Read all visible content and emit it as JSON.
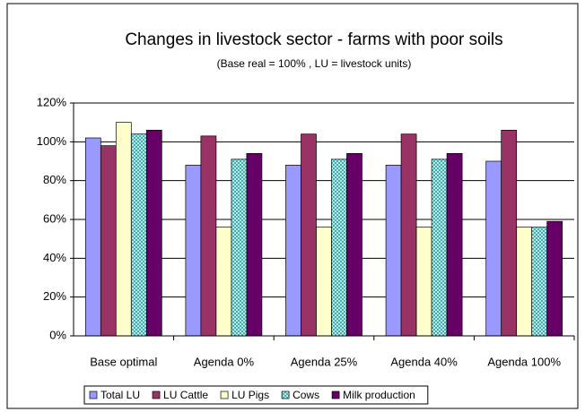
{
  "chart_data": {
    "type": "bar",
    "title": "Changes in livestock sector - farms with poor soils",
    "subtitle": "(Base real = 100% , LU = livestock units)",
    "categories": [
      "Base optimal",
      "Agenda 0%",
      "Agenda 25%",
      "Agenda 40%",
      "Agenda 100%"
    ],
    "series": [
      {
        "name": "Total LU",
        "color": "#9999ff",
        "values": [
          102,
          88,
          88,
          88,
          90
        ]
      },
      {
        "name": "LU Cattle",
        "color": "#993366",
        "values": [
          98,
          103,
          104,
          104,
          106
        ]
      },
      {
        "name": "LU Pigs",
        "color": "#ffffcc",
        "values": [
          110,
          56,
          56,
          56,
          56
        ]
      },
      {
        "name": "Cows",
        "color": "#ccffff",
        "pattern": "crosshatch",
        "values": [
          104,
          91,
          91,
          91,
          56
        ]
      },
      {
        "name": "Milk production",
        "color": "#660066",
        "values": [
          106,
          94,
          94,
          94,
          59
        ]
      }
    ],
    "ylim": [
      0,
      120
    ],
    "yticks": [
      {
        "value": 0,
        "label": "0%"
      },
      {
        "value": 20,
        "label": "20%"
      },
      {
        "value": 40,
        "label": "40%"
      },
      {
        "value": 60,
        "label": "60%"
      },
      {
        "value": 80,
        "label": "80%"
      },
      {
        "value": 100,
        "label": "100%"
      },
      {
        "value": 120,
        "label": "120%"
      }
    ],
    "grid": true,
    "legend": "bottom"
  }
}
